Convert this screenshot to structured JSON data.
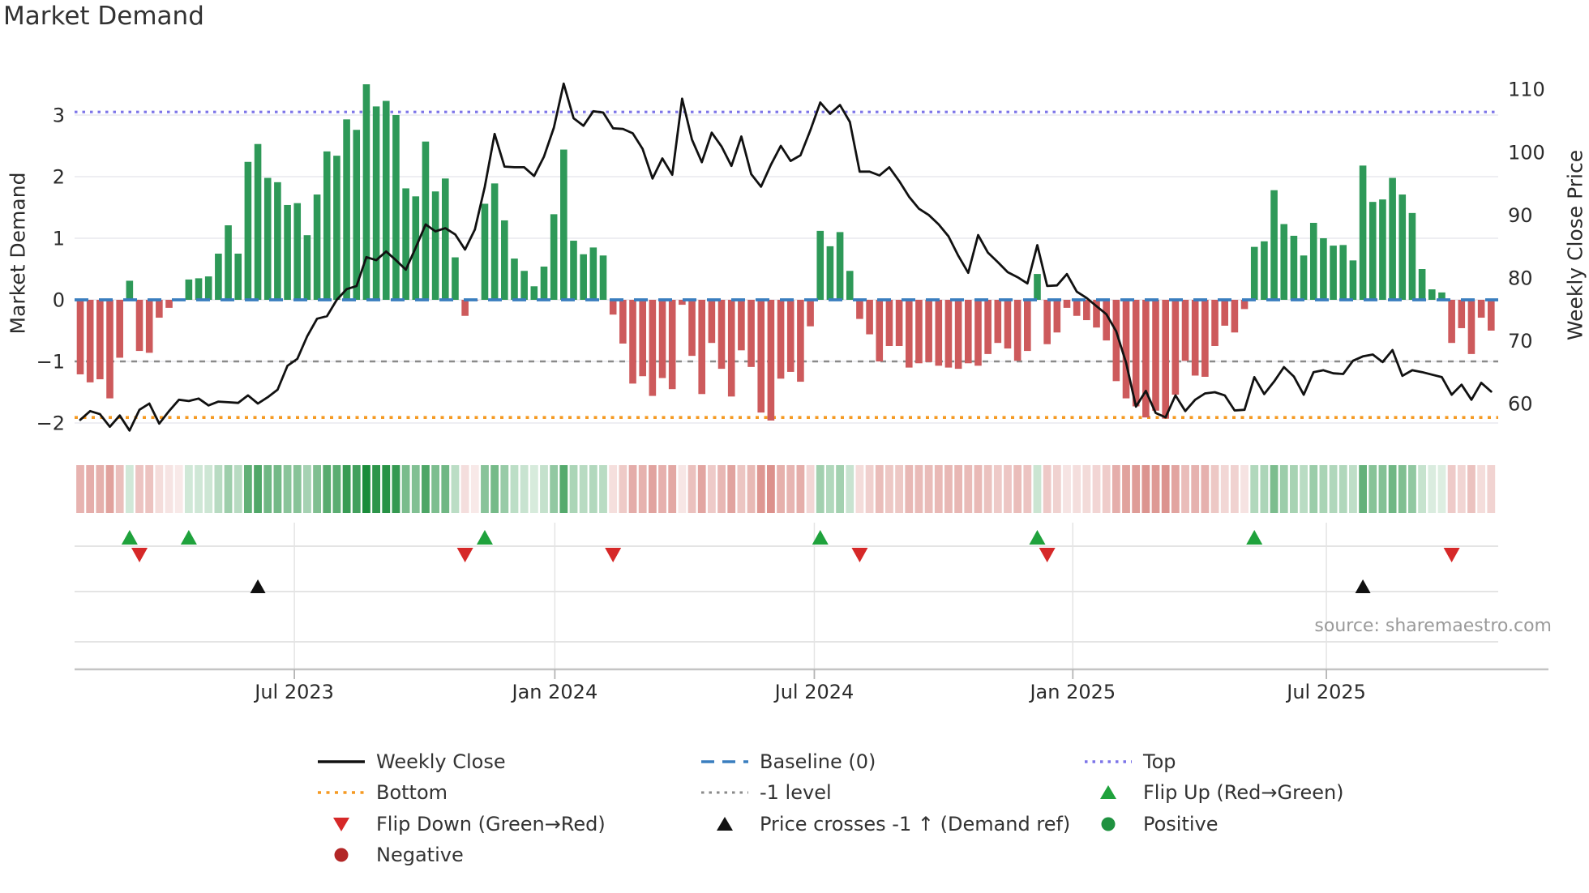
{
  "header": {
    "title": "Market Demand"
  },
  "source_note": "source: sharemaestro.com",
  "colors": {
    "bar_positive": "#2e9958",
    "bar_negative": "#cd5a5c",
    "price_line": "#111111",
    "baseline": "#3a7ebf",
    "top_line": "#7d75e8",
    "bottom_line": "#f59a23",
    "minus1_line": "#8a8a8a",
    "flip_up": "#1fa23c",
    "flip_down": "#d62828",
    "price_cross": "#111111",
    "positive_dot": "#1f9240",
    "negative_dot": "#b22626",
    "grid": "#e9e9ee",
    "panel_grid": "#dcdcdc",
    "panel_vgrid": "#e4e4e4",
    "axis_line": "#c4c4c4",
    "tick_mark": "#b5b5b5",
    "text": "#2b2b2b",
    "heat_green": [
      26,
      140,
      58
    ],
    "heat_red": [
      198,
      78,
      70
    ]
  },
  "chart_data": {
    "type": "combo",
    "title": "Market Demand",
    "x_tick_labels": [
      "Jul 2023",
      "Jan 2024",
      "Jul 2024",
      "Jan 2025",
      "Jul 2025"
    ],
    "x_tick_weeks": [
      21.7,
      48.1,
      74.4,
      100.6,
      126.3
    ],
    "left_axis": {
      "label": "Market Demand",
      "ticks": [
        3,
        2,
        1,
        0,
        -1,
        -2
      ],
      "tick_labels": [
        "3",
        "2",
        "1",
        "0",
        "−1",
        "−2"
      ]
    },
    "right_axis": {
      "label": "Weekly Close Price",
      "ticks": [
        110,
        100,
        90,
        80,
        70,
        60
      ],
      "tick_labels": [
        "110",
        "100",
        "90",
        "80",
        "70",
        "60"
      ]
    },
    "levels": {
      "top": 3.05,
      "baseline": 0,
      "minus1": -1,
      "bottom": -1.91
    },
    "series": [
      {
        "name": "Market Demand",
        "type": "bar",
        "values": [
          -1.21,
          -1.34,
          -1.29,
          -1.6,
          -0.94,
          0.31,
          -0.83,
          -0.86,
          -0.29,
          -0.13,
          -0.02,
          0.33,
          0.35,
          0.38,
          0.75,
          1.21,
          0.75,
          2.24,
          2.53,
          1.98,
          1.91,
          1.54,
          1.57,
          1.05,
          1.71,
          2.41,
          2.34,
          2.93,
          2.76,
          3.5,
          3.14,
          3.23,
          3.0,
          1.81,
          1.68,
          2.57,
          1.76,
          1.97,
          0.69,
          -0.26,
          -0.01,
          1.56,
          1.89,
          1.29,
          0.67,
          0.47,
          0.22,
          0.54,
          1.39,
          2.44,
          0.96,
          0.74,
          0.85,
          0.72,
          -0.24,
          -0.71,
          -1.36,
          -1.24,
          -1.56,
          -1.27,
          -1.45,
          -0.08,
          -0.91,
          -1.53,
          -0.7,
          -1.12,
          -1.57,
          -0.82,
          -1.09,
          -1.83,
          -1.96,
          -1.28,
          -1.17,
          -1.33,
          -0.43,
          1.12,
          0.87,
          1.1,
          0.47,
          -0.31,
          -0.56,
          -1.0,
          -0.75,
          -0.75,
          -1.1,
          -1.03,
          -1.01,
          -1.07,
          -1.1,
          -1.12,
          -1.03,
          -1.07,
          -0.88,
          -0.7,
          -0.79,
          -0.99,
          -0.83,
          0.42,
          -0.72,
          -0.53,
          -0.13,
          -0.26,
          -0.33,
          -0.45,
          -0.66,
          -1.32,
          -1.6,
          -1.73,
          -1.91,
          -1.8,
          -1.93,
          -1.54,
          -0.99,
          -1.23,
          -1.25,
          -0.75,
          -0.42,
          -0.53,
          -0.15,
          0.86,
          0.95,
          1.78,
          1.23,
          1.04,
          0.72,
          1.25,
          1.0,
          0.88,
          0.89,
          0.64,
          2.18,
          1.59,
          1.63,
          1.98,
          1.71,
          1.41,
          0.5,
          0.17,
          0.12,
          -0.7,
          -0.46,
          -0.88,
          -0.29,
          -0.5
        ]
      },
      {
        "name": "Weekly Close",
        "type": "line",
        "values": [
          57.4,
          58.8,
          58.3,
          56.3,
          58.1,
          55.7,
          59.0,
          60.0,
          56.8,
          58.8,
          60.6,
          60.4,
          60.8,
          59.7,
          60.3,
          60.2,
          60.1,
          61.3,
          60.0,
          61.0,
          62.2,
          66.0,
          67.1,
          70.7,
          73.5,
          73.9,
          76.5,
          78.2,
          78.7,
          83.3,
          82.8,
          84.2,
          82.8,
          81.3,
          84.8,
          88.5,
          87.4,
          87.9,
          86.9,
          84.5,
          87.7,
          94.5,
          102.9,
          97.7,
          97.6,
          97.6,
          96.2,
          99.3,
          103.9,
          110.9,
          105.4,
          104.2,
          106.5,
          106.3,
          103.8,
          103.7,
          103.0,
          100.5,
          95.8,
          99.0,
          96.4,
          108.5,
          102.0,
          98.4,
          103.1,
          100.9,
          97.8,
          102.5,
          96.5,
          94.5,
          98.0,
          101.0,
          98.6,
          99.5,
          103.5,
          107.9,
          106.1,
          107.5,
          104.8,
          96.9,
          96.9,
          96.3,
          97.6,
          95.4,
          92.9,
          91.0,
          90.0,
          88.5,
          86.6,
          83.5,
          80.8,
          86.8,
          84.0,
          82.5,
          80.9,
          80.1,
          79.1,
          85.2,
          78.7,
          78.8,
          80.6,
          77.8,
          76.8,
          75.5,
          74.2,
          71.5,
          66.5,
          59.5,
          62.0,
          58.5,
          57.8,
          61.3,
          58.8,
          60.6,
          61.6,
          61.8,
          61.3,
          58.9,
          59.0,
          64.2,
          61.5,
          63.5,
          65.8,
          64.3,
          61.4,
          65.0,
          65.3,
          64.8,
          64.7,
          66.8,
          67.5,
          67.8,
          66.6,
          68.5,
          64.4,
          65.3,
          65.0,
          64.6,
          64.2,
          61.4,
          63.0,
          60.6,
          63.3,
          61.9
        ]
      }
    ],
    "markers": {
      "flip_up": {
        "label": "Flip Up (Red→Green)",
        "weeks": [
          5,
          11,
          41,
          75,
          97,
          119
        ]
      },
      "flip_down": {
        "label": "Flip Down (Green→Red)",
        "weeks": [
          6,
          39,
          54,
          79,
          98,
          139
        ]
      },
      "price_cross": {
        "label": "Price crosses -1 ↑ (Demand ref)",
        "weeks": [
          18,
          130
        ]
      }
    },
    "legend": [
      {
        "label": "Weekly Close",
        "swatch": "line-black"
      },
      {
        "label": "Baseline (0)",
        "swatch": "dash-blue"
      },
      {
        "label": "Top",
        "swatch": "dot-purple"
      },
      {
        "label": "Bottom",
        "swatch": "dot-orange"
      },
      {
        "label": "-1 level",
        "swatch": "dot-gray"
      },
      {
        "label": "Flip Up (Red→Green)",
        "swatch": "tri-up-green"
      },
      {
        "label": "Flip Down (Green→Red)",
        "swatch": "tri-down-red"
      },
      {
        "label": "Price crosses -1 ↑ (Demand ref)",
        "swatch": "tri-up-black"
      },
      {
        "label": "Positive",
        "swatch": "dot-green"
      },
      {
        "label": "Negative",
        "swatch": "dot-darkred"
      }
    ]
  }
}
